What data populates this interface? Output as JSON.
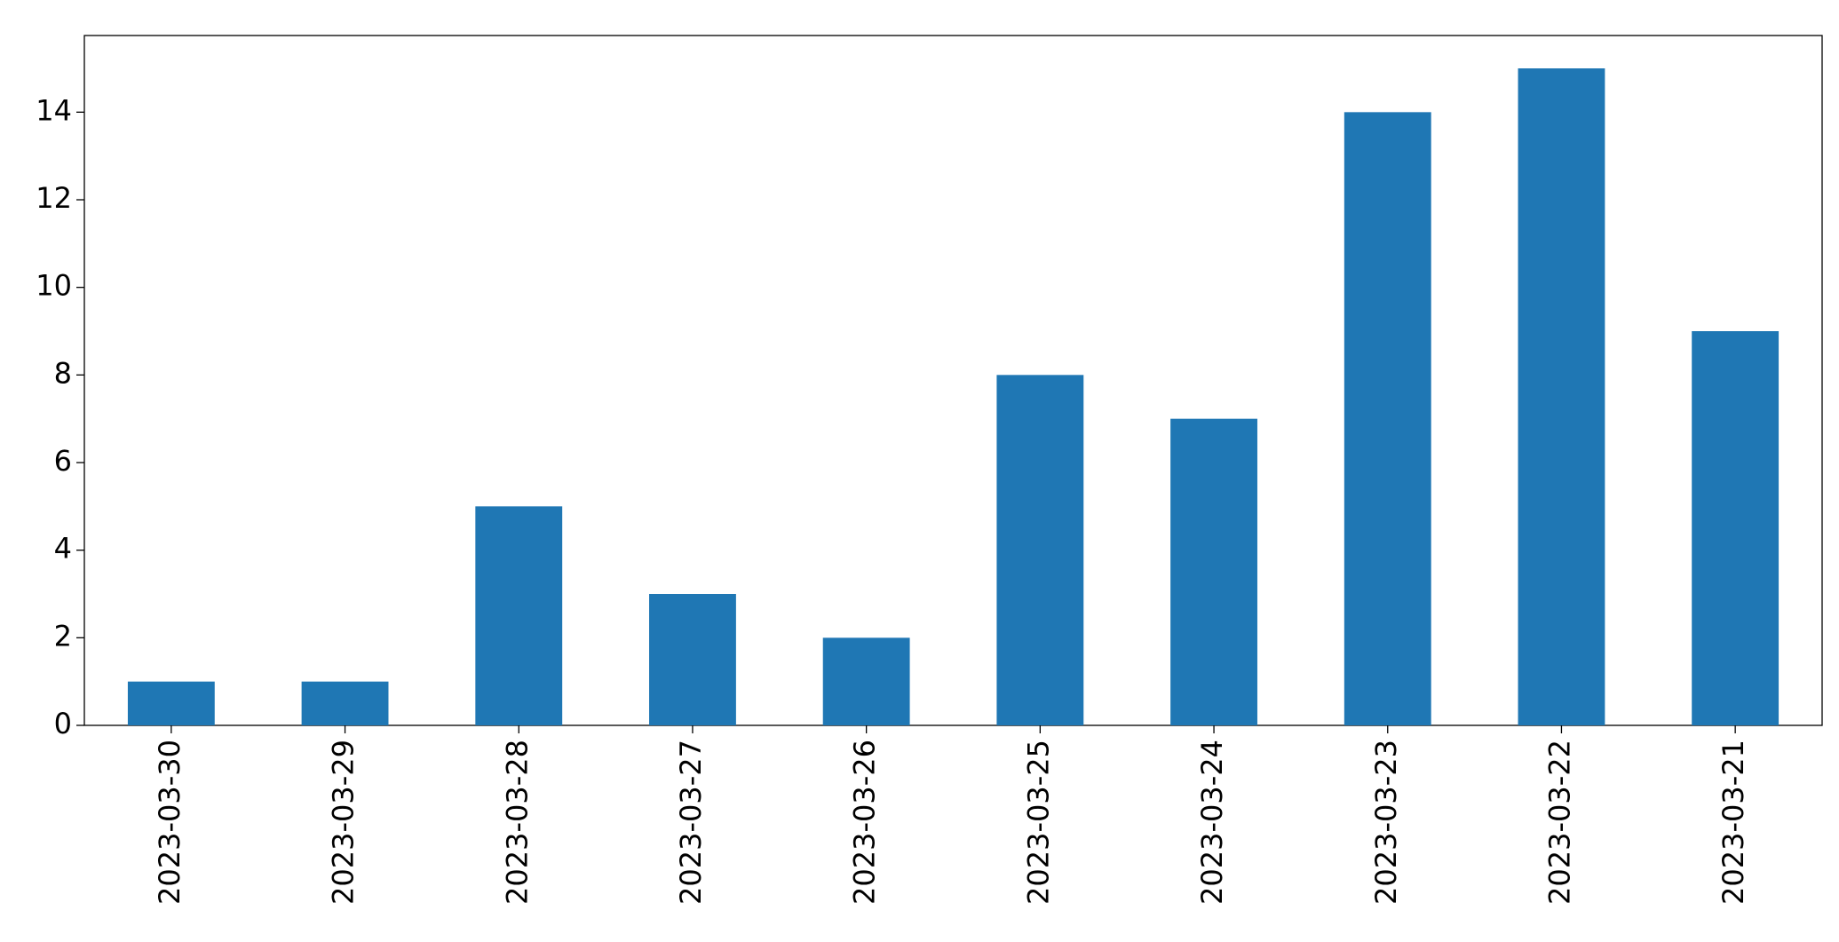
{
  "chart_data": {
    "type": "bar",
    "categories": [
      "2023-03-30",
      "2023-03-29",
      "2023-03-28",
      "2023-03-27",
      "2023-03-26",
      "2023-03-25",
      "2023-03-24",
      "2023-03-23",
      "2023-03-22",
      "2023-03-21"
    ],
    "values": [
      1,
      1,
      5,
      3,
      2,
      8,
      7,
      14,
      15,
      9
    ],
    "color": "#1f77b4",
    "ylim": [
      0,
      15.75
    ],
    "yticks": [
      0,
      2,
      4,
      6,
      8,
      10,
      12,
      14
    ],
    "grid": false
  }
}
